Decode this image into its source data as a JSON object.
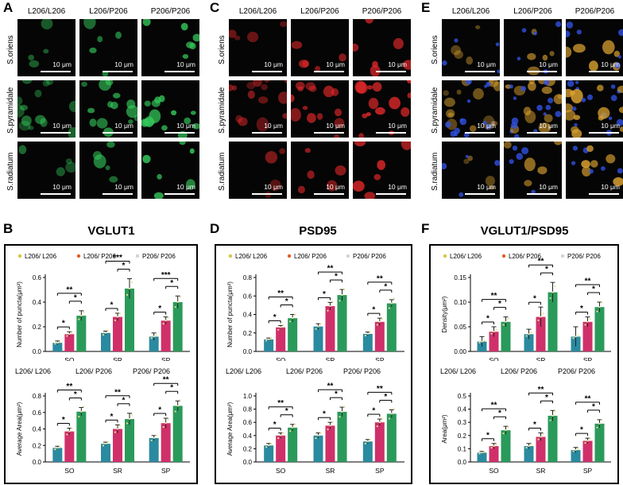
{
  "panel_letters": {
    "A": "A",
    "B": "B",
    "C": "C",
    "D": "D",
    "E": "E",
    "F": "F"
  },
  "micrographs": {
    "genotypes": [
      "L206/L206",
      "L206/P206",
      "P206/P206"
    ],
    "regions": [
      "S.oriens",
      "S.pyramidale",
      "S.radiatum"
    ],
    "scale_bar": "10 μm",
    "panels": [
      {
        "id": "A",
        "channel": "green",
        "color": "#34c85a"
      },
      {
        "id": "C",
        "channel": "red",
        "color": "#e0282a"
      },
      {
        "id": "E",
        "channel": "merge",
        "color": "#d8a030"
      }
    ]
  },
  "chart_data": [
    {
      "id": "B-top",
      "panel": "B",
      "type": "bar",
      "title": "VGLUT1",
      "legend": [
        "L206/ L206",
        "L206/ P206",
        "P206/ P206"
      ],
      "legend_colors": [
        "#d8c838",
        "#e85a2a",
        "#d2d2d2"
      ],
      "bar_colors": [
        "#2a8aa0",
        "#d0306a",
        "#2a9a5a"
      ],
      "categories": [
        "SO",
        "SR",
        "SP"
      ],
      "ylabel": "Number of puncta(μm²)",
      "ylim": [
        0,
        0.6
      ],
      "yticks": [
        0.0,
        0.2,
        0.4,
        0.6
      ],
      "series": [
        {
          "name": "L206/ L206",
          "values": [
            0.07,
            0.15,
            0.12
          ],
          "err": [
            0.015,
            0.015,
            0.03
          ]
        },
        {
          "name": "L206/ P206",
          "values": [
            0.14,
            0.28,
            0.25
          ],
          "err": [
            0.02,
            0.03,
            0.03
          ]
        },
        {
          "name": "P206/ P206",
          "values": [
            0.29,
            0.51,
            0.4
          ],
          "err": [
            0.04,
            0.08,
            0.05
          ]
        }
      ],
      "sig": [
        {
          "cat": 0,
          "a": 0,
          "b": 1,
          "label": "*"
        },
        {
          "cat": 0,
          "a": 1,
          "b": 2,
          "label": "*"
        },
        {
          "cat": 0,
          "a": 0,
          "b": 2,
          "label": "**"
        },
        {
          "cat": 1,
          "a": 0,
          "b": 1,
          "label": "*"
        },
        {
          "cat": 1,
          "a": 1,
          "b": 2,
          "label": "*"
        },
        {
          "cat": 1,
          "a": 0,
          "b": 2,
          "label": "***"
        },
        {
          "cat": 2,
          "a": 0,
          "b": 1,
          "label": "*"
        },
        {
          "cat": 2,
          "a": 1,
          "b": 2,
          "label": "*"
        },
        {
          "cat": 2,
          "a": 0,
          "b": 2,
          "label": "***"
        }
      ]
    },
    {
      "id": "B-bottom",
      "panel": "B",
      "type": "bar",
      "top_labels": [
        "L206/ L206",
        "L206/ P206",
        "P206/ P206"
      ],
      "bar_colors": [
        "#2a8aa0",
        "#d0306a",
        "#2a9a5a"
      ],
      "categories": [
        "SO",
        "SR",
        "SP"
      ],
      "ylabel": "Average Area(μm²)",
      "ylim": [
        0,
        0.8
      ],
      "yticks": [
        0.0,
        0.2,
        0.4,
        0.6,
        0.8
      ],
      "series": [
        {
          "name": "L206/ L206",
          "values": [
            0.17,
            0.22,
            0.29
          ],
          "err": [
            0.02,
            0.02,
            0.03
          ]
        },
        {
          "name": "L206/ P206",
          "values": [
            0.37,
            0.4,
            0.47
          ],
          "err": [
            0.04,
            0.05,
            0.06
          ]
        },
        {
          "name": "P206/ P206",
          "values": [
            0.61,
            0.52,
            0.68
          ],
          "err": [
            0.05,
            0.07,
            0.06
          ]
        }
      ],
      "sig": [
        {
          "cat": 0,
          "a": 0,
          "b": 1,
          "label": "*"
        },
        {
          "cat": 0,
          "a": 1,
          "b": 2,
          "label": "*"
        },
        {
          "cat": 0,
          "a": 0,
          "b": 2,
          "label": "**"
        },
        {
          "cat": 1,
          "a": 0,
          "b": 1,
          "label": "*"
        },
        {
          "cat": 1,
          "a": 1,
          "b": 2,
          "label": "*"
        },
        {
          "cat": 1,
          "a": 0,
          "b": 2,
          "label": "**"
        },
        {
          "cat": 2,
          "a": 0,
          "b": 1,
          "label": "*"
        },
        {
          "cat": 2,
          "a": 1,
          "b": 2,
          "label": "*"
        },
        {
          "cat": 2,
          "a": 0,
          "b": 2,
          "label": "**"
        }
      ]
    },
    {
      "id": "D-top",
      "panel": "D",
      "type": "bar",
      "title": "PSD95",
      "legend": [
        "L206/ L206",
        "L206/ P206",
        "P206/ P206"
      ],
      "legend_colors": [
        "#d8c838",
        "#e85a2a",
        "#d2d2d2"
      ],
      "bar_colors": [
        "#2a8aa0",
        "#d0306a",
        "#2a9a5a"
      ],
      "categories": [
        "SO",
        "SR",
        "SP"
      ],
      "ylabel": "Number of puncta(μm²)",
      "ylim": [
        0,
        0.8
      ],
      "yticks": [
        0.0,
        0.2,
        0.4,
        0.6,
        0.8
      ],
      "series": [
        {
          "name": "L206/ L206",
          "values": [
            0.13,
            0.27,
            0.19
          ],
          "err": [
            0.015,
            0.03,
            0.02
          ]
        },
        {
          "name": "L206/ P206",
          "values": [
            0.26,
            0.49,
            0.32
          ],
          "err": [
            0.02,
            0.04,
            0.04
          ]
        },
        {
          "name": "P206/ P206",
          "values": [
            0.36,
            0.61,
            0.52
          ],
          "err": [
            0.04,
            0.06,
            0.04
          ]
        }
      ],
      "sig": [
        {
          "cat": 0,
          "a": 0,
          "b": 1,
          "label": "*"
        },
        {
          "cat": 0,
          "a": 1,
          "b": 2,
          "label": "*"
        },
        {
          "cat": 0,
          "a": 0,
          "b": 2,
          "label": "**"
        },
        {
          "cat": 1,
          "a": 0,
          "b": 1,
          "label": "*"
        },
        {
          "cat": 1,
          "a": 1,
          "b": 2,
          "label": "*"
        },
        {
          "cat": 1,
          "a": 0,
          "b": 2,
          "label": "**"
        },
        {
          "cat": 2,
          "a": 0,
          "b": 1,
          "label": "*"
        },
        {
          "cat": 2,
          "a": 1,
          "b": 2,
          "label": "*"
        },
        {
          "cat": 2,
          "a": 0,
          "b": 2,
          "label": "**"
        }
      ]
    },
    {
      "id": "D-bottom",
      "panel": "D",
      "type": "bar",
      "top_labels": [
        "L206/ L206",
        "L206/ P206",
        "P206/ P206"
      ],
      "bar_colors": [
        "#2a8aa0",
        "#d0306a",
        "#2a9a5a"
      ],
      "categories": [
        "SO",
        "SR",
        "SP"
      ],
      "ylabel": "Average Area(μm²)",
      "ylim": [
        0,
        1.0
      ],
      "yticks": [
        0.0,
        0.2,
        0.4,
        0.6,
        0.8,
        1.0
      ],
      "series": [
        {
          "name": "L206/ L206",
          "values": [
            0.25,
            0.4,
            0.31
          ],
          "err": [
            0.03,
            0.04,
            0.03
          ]
        },
        {
          "name": "L206/ P206",
          "values": [
            0.4,
            0.55,
            0.6
          ],
          "err": [
            0.04,
            0.05,
            0.05
          ]
        },
        {
          "name": "P206/ P206",
          "values": [
            0.52,
            0.76,
            0.73
          ],
          "err": [
            0.05,
            0.07,
            0.06
          ]
        }
      ],
      "sig": [
        {
          "cat": 0,
          "a": 0,
          "b": 1,
          "label": "*"
        },
        {
          "cat": 0,
          "a": 1,
          "b": 2,
          "label": "*"
        },
        {
          "cat": 0,
          "a": 0,
          "b": 2,
          "label": "**"
        },
        {
          "cat": 1,
          "a": 0,
          "b": 1,
          "label": "*"
        },
        {
          "cat": 1,
          "a": 1,
          "b": 2,
          "label": "*"
        },
        {
          "cat": 1,
          "a": 0,
          "b": 2,
          "label": "**"
        },
        {
          "cat": 2,
          "a": 0,
          "b": 1,
          "label": "*"
        },
        {
          "cat": 2,
          "a": 1,
          "b": 2,
          "label": "*"
        },
        {
          "cat": 2,
          "a": 0,
          "b": 2,
          "label": "**"
        }
      ]
    },
    {
      "id": "F-top",
      "panel": "F",
      "type": "bar",
      "title": "VGLUT1/PSD95",
      "legend": [
        "L206/ L206",
        "L206/ P206",
        "P206/ P206"
      ],
      "legend_colors": [
        "#d8c838",
        "#e85a2a",
        "#d2d2d2"
      ],
      "bar_colors": [
        "#2a8aa0",
        "#d0306a",
        "#2a9a5a"
      ],
      "categories": [
        "SO",
        "SR",
        "SP"
      ],
      "ylabel": "Density(μm²)",
      "ylim": [
        0,
        0.15
      ],
      "yticks": [
        0.0,
        0.05,
        0.1,
        0.15
      ],
      "series": [
        {
          "name": "L206/ L206",
          "values": [
            0.02,
            0.035,
            0.03
          ],
          "err": [
            0.01,
            0.01,
            0.02
          ]
        },
        {
          "name": "L206/ P206",
          "values": [
            0.04,
            0.07,
            0.06
          ],
          "err": [
            0.01,
            0.02,
            0.01
          ]
        },
        {
          "name": "P206/ P206",
          "values": [
            0.06,
            0.12,
            0.09
          ],
          "err": [
            0.01,
            0.02,
            0.01
          ]
        }
      ],
      "sig": [
        {
          "cat": 0,
          "a": 0,
          "b": 1,
          "label": "*"
        },
        {
          "cat": 0,
          "a": 1,
          "b": 2,
          "label": "*"
        },
        {
          "cat": 0,
          "a": 0,
          "b": 2,
          "label": "**"
        },
        {
          "cat": 1,
          "a": 0,
          "b": 1,
          "label": "*"
        },
        {
          "cat": 1,
          "a": 1,
          "b": 2,
          "label": "*"
        },
        {
          "cat": 1,
          "a": 0,
          "b": 2,
          "label": "**"
        },
        {
          "cat": 2,
          "a": 0,
          "b": 1,
          "label": "*"
        },
        {
          "cat": 2,
          "a": 1,
          "b": 2,
          "label": "*"
        },
        {
          "cat": 2,
          "a": 0,
          "b": 2,
          "label": "**"
        }
      ]
    },
    {
      "id": "F-bottom",
      "panel": "F",
      "type": "bar",
      "top_labels": [
        "L206/ L206",
        "L206/ P206",
        "P206/ P206"
      ],
      "bar_colors": [
        "#2a8aa0",
        "#d0306a",
        "#2a9a5a"
      ],
      "categories": [
        "SO",
        "SR",
        "SP"
      ],
      "ylabel": "Area(μm²)",
      "ylim": [
        0,
        0.5
      ],
      "yticks": [
        0.0,
        0.1,
        0.2,
        0.3,
        0.4,
        0.5
      ],
      "series": [
        {
          "name": "L206/ L206",
          "values": [
            0.07,
            0.12,
            0.09
          ],
          "err": [
            0.01,
            0.02,
            0.02
          ]
        },
        {
          "name": "L206/ P206",
          "values": [
            0.12,
            0.19,
            0.16
          ],
          "err": [
            0.02,
            0.03,
            0.02
          ]
        },
        {
          "name": "P206/ P206",
          "values": [
            0.24,
            0.35,
            0.29
          ],
          "err": [
            0.03,
            0.04,
            0.03
          ]
        }
      ],
      "sig": [
        {
          "cat": 0,
          "a": 0,
          "b": 1,
          "label": "*"
        },
        {
          "cat": 0,
          "a": 1,
          "b": 2,
          "label": "*"
        },
        {
          "cat": 0,
          "a": 0,
          "b": 2,
          "label": "**"
        },
        {
          "cat": 1,
          "a": 0,
          "b": 1,
          "label": "*"
        },
        {
          "cat": 1,
          "a": 1,
          "b": 2,
          "label": "*"
        },
        {
          "cat": 1,
          "a": 0,
          "b": 2,
          "label": "**"
        },
        {
          "cat": 2,
          "a": 0,
          "b": 1,
          "label": "*"
        },
        {
          "cat": 2,
          "a": 1,
          "b": 2,
          "label": "*"
        },
        {
          "cat": 2,
          "a": 0,
          "b": 2,
          "label": "**"
        }
      ]
    }
  ]
}
